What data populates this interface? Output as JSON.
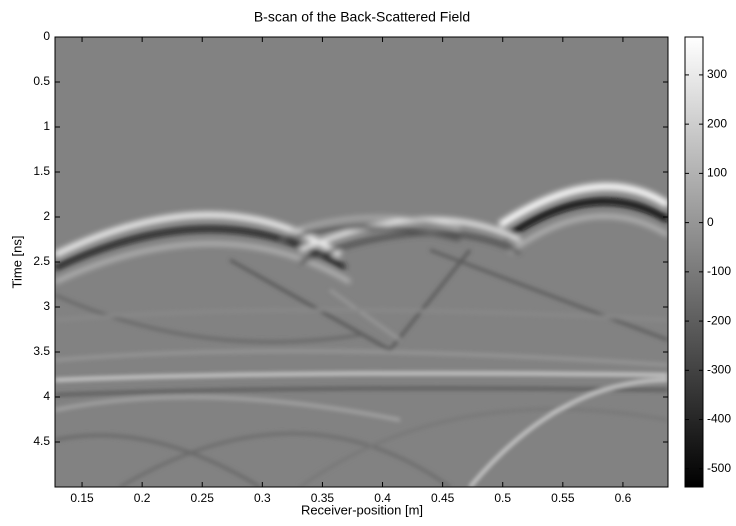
{
  "chart_data": {
    "type": "heatmap",
    "title": "B-scan of the Back-Scattered Field",
    "xlabel": "Receiver-position [m]",
    "ylabel": "Time [ns]",
    "xlim": [
      0.1275,
      0.6375
    ],
    "xticks": [
      0.15,
      0.2,
      0.25,
      0.3,
      0.35,
      0.4,
      0.45,
      0.5,
      0.55,
      0.6
    ],
    "ylim": [
      0,
      5
    ],
    "yticks": [
      0,
      0.5,
      1,
      1.5,
      2,
      2.5,
      3,
      3.5,
      4,
      4.5
    ],
    "y_reversed": true,
    "cmap": "gray",
    "colorbar": {
      "clim": [
        -537,
        377
      ],
      "ticks": [
        300,
        200,
        100,
        0,
        -100,
        -200,
        -300,
        -400,
        -500
      ]
    }
  }
}
